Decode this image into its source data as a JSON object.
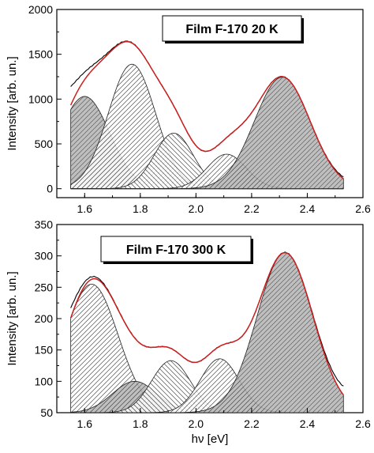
{
  "chart_data": [
    {
      "type": "area",
      "legend": "Film F-170  20 K",
      "xlabel": "hν [eV]",
      "ylabel": "Intensity [arb. un.]",
      "xlim": [
        1.5,
        2.6
      ],
      "ylim": [
        -100,
        2000
      ],
      "xticks": [
        1.6,
        1.8,
        2.0,
        2.2,
        2.4,
        2.6
      ],
      "yticks": [
        0,
        500,
        1000,
        1500,
        2000
      ],
      "x_range": [
        1.55,
        2.53
      ],
      "gaussians": [
        {
          "center": 1.6,
          "amplitude": 1030,
          "sigma": 0.09,
          "pattern": "dense-gray"
        },
        {
          "center": 1.77,
          "amplitude": 1390,
          "sigma": 0.085,
          "pattern": "diag-right"
        },
        {
          "center": 1.92,
          "amplitude": 620,
          "sigma": 0.07,
          "pattern": "diag-left"
        },
        {
          "center": 2.11,
          "amplitude": 385,
          "sigma": 0.07,
          "pattern": "diag-right"
        },
        {
          "center": 2.31,
          "amplitude": 1245,
          "sigma": 0.1,
          "pattern": "dense-gray"
        }
      ],
      "experimental_curve": {
        "color": "#000000",
        "start": [
          1.55,
          1140
        ],
        "end": [
          2.53,
          130
        ]
      },
      "fit_curve": {
        "color": "#cc1f1f"
      }
    },
    {
      "type": "area",
      "legend": "Film F-170  300 K",
      "xlabel": "hν [eV]",
      "ylabel": "Intensity [arb. un.]",
      "xlim": [
        1.5,
        2.6
      ],
      "ylim": [
        50,
        350
      ],
      "xticks": [
        1.6,
        1.8,
        2.0,
        2.2,
        2.4,
        2.6
      ],
      "yticks": [
        50,
        100,
        150,
        200,
        250,
        300,
        350
      ],
      "x_range": [
        1.55,
        2.53
      ],
      "gaussians": [
        {
          "center": 1.625,
          "amplitude": 205,
          "sigma": 0.095,
          "pattern": "diag-right"
        },
        {
          "center": 1.78,
          "amplitude": 50,
          "sigma": 0.08,
          "pattern": "dense-gray"
        },
        {
          "center": 1.91,
          "amplitude": 83,
          "sigma": 0.07,
          "pattern": "diag-left"
        },
        {
          "center": 2.085,
          "amplitude": 86,
          "sigma": 0.07,
          "pattern": "diag-right"
        },
        {
          "center": 2.32,
          "amplitude": 255,
          "sigma": 0.1,
          "pattern": "dense-gray"
        }
      ],
      "baseline": 50,
      "experimental_curve": {
        "color": "#000000",
        "start": [
          1.55,
          217
        ],
        "end": [
          2.53,
          92
        ]
      },
      "fit_curve": {
        "color": "#cc1f1f"
      }
    }
  ]
}
